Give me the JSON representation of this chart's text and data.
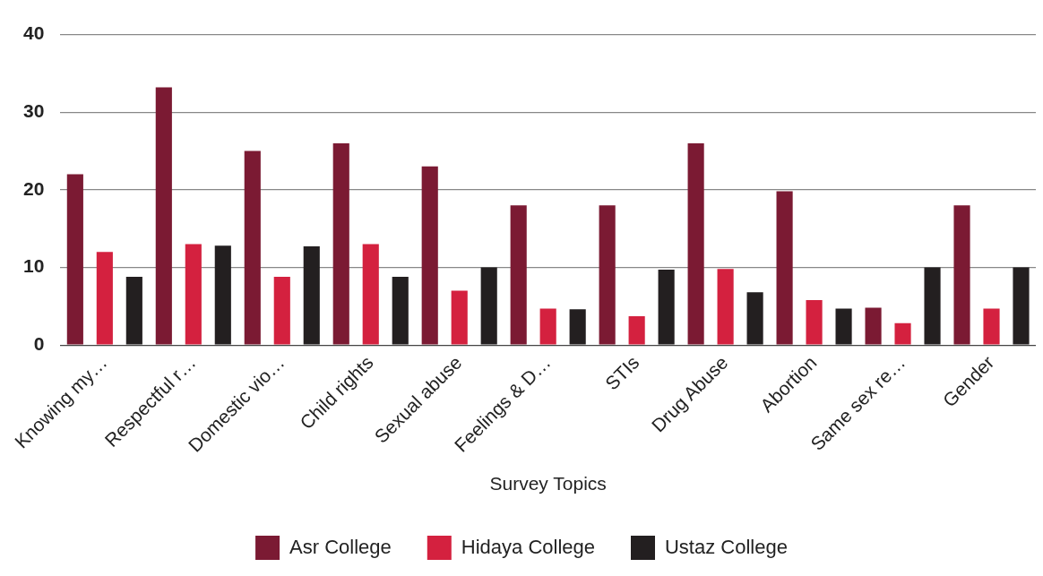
{
  "chart_data": {
    "type": "bar",
    "xlabel": "Survey Topics",
    "categories": [
      "Knowing my…",
      "Respectful r…",
      "Domestic vio…",
      "Child rights",
      "Sexual abuse",
      "Feelings & D…",
      "STIs",
      "Drug Abuse",
      "Abortion",
      "Same sex re…",
      "Gender"
    ],
    "series": [
      {
        "name": "Asr College",
        "color": "#7b1a33",
        "values": [
          22,
          33.2,
          25,
          26,
          23,
          18,
          18,
          26,
          19.8,
          4.8,
          18
        ]
      },
      {
        "name": "Hidaya College",
        "color": "#d4213f",
        "values": [
          12,
          13,
          8.8,
          13,
          7,
          4.7,
          3.7,
          9.8,
          5.8,
          2.8,
          4.7
        ]
      },
      {
        "name": "Ustaz College",
        "color": "#231f20",
        "values": [
          8.8,
          12.8,
          12.7,
          8.8,
          10,
          4.6,
          9.7,
          6.8,
          4.7,
          10,
          10
        ]
      }
    ],
    "ylim": [
      0,
      40
    ],
    "yticks": [
      0,
      10,
      20,
      30,
      40
    ],
    "grid": "y",
    "legend": "bottom"
  }
}
